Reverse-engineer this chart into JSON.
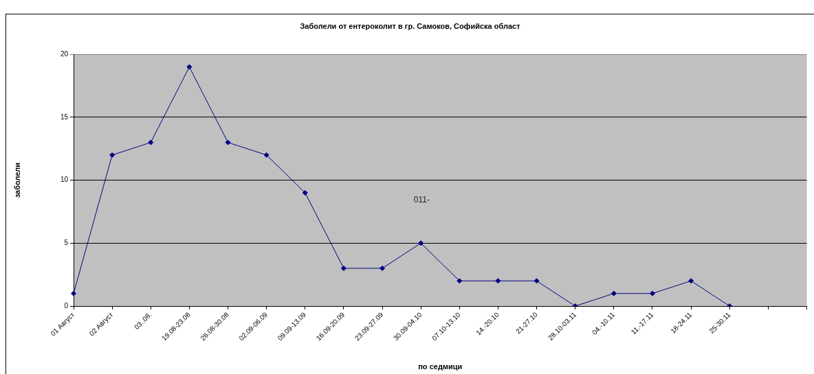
{
  "chart_data": {
    "type": "line",
    "title": "Заболели от ентероколит в гр. Самоков, Софийска област",
    "xlabel": "по седмици",
    "ylabel": "заболели",
    "categories": [
      "01 Август",
      "02 Август",
      "03..08.",
      "19.08-23.08",
      "26.08-30.08",
      "02.09-06.09",
      "09.09-13.09",
      "16.09-20.09",
      "23.09-27.09",
      "30.09-04.10",
      "07.10-13.10",
      "14.-20.10",
      "21-27.10",
      "28.10-03.11",
      "04.-10.11",
      "11.-17.11",
      "18-24.11",
      "25-30.11",
      null,
      null
    ],
    "values": [
      1,
      12,
      13,
      19,
      13,
      12,
      9,
      3,
      3,
      5,
      2,
      2,
      2,
      0,
      1,
      1,
      2,
      0,
      null,
      null
    ],
    "color": "#000080",
    "marker": "diamond",
    "line_style": "solid",
    "ylim": [
      0,
      20
    ],
    "yticks": [
      0,
      5,
      10,
      15,
      20
    ],
    "grid": "y",
    "annotations": [
      "011-"
    ]
  }
}
